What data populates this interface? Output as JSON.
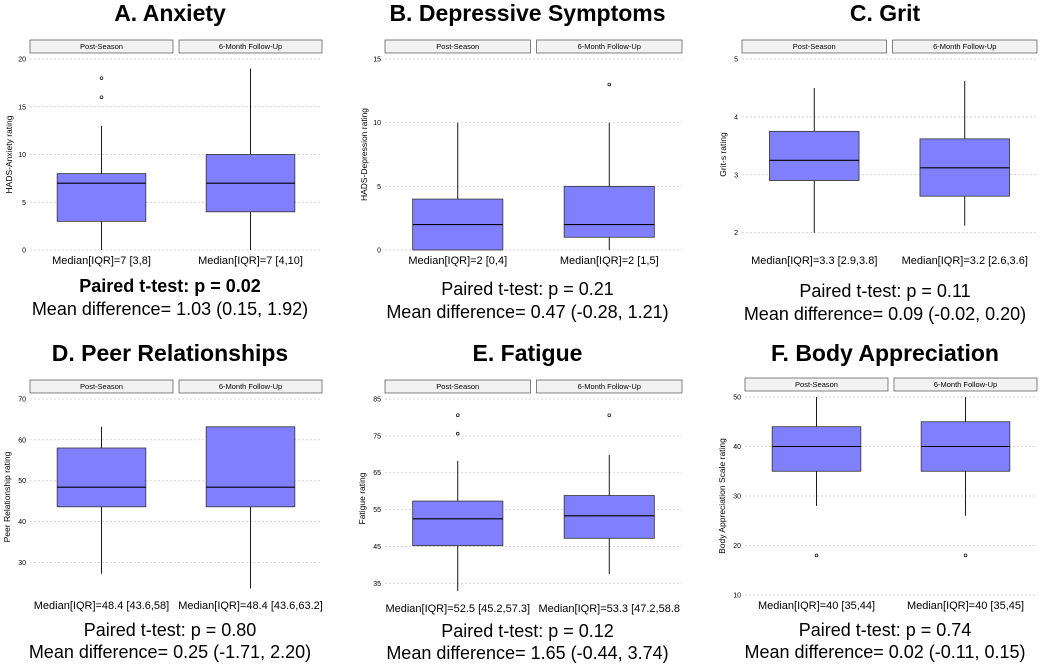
{
  "chart_data": [
    {
      "type": "boxplot",
      "title": "A. Anxiety",
      "ylabel": "HADS-Anxiety rating",
      "ylim": [
        0,
        20
      ],
      "yticks": [
        0,
        5,
        10,
        15,
        20
      ],
      "groups": [
        {
          "name": "Post-Season",
          "min": 0,
          "q1": 3,
          "median": 7,
          "q3": 8,
          "max": 13,
          "outliers": [
            16,
            18
          ],
          "summary": "Median[IQR]=7 [3,8]"
        },
        {
          "name": "6-Month Follow-Up",
          "min": 0,
          "q1": 4,
          "median": 7,
          "q3": 10,
          "max": 19,
          "outliers": [],
          "summary": "Median[IQR]=7 [4,10]"
        }
      ],
      "test": "Paired t-test: p = 0.02",
      "test_bold": true,
      "mean_diff": "Mean difference= 1.03 (0.15, 1.92)"
    },
    {
      "type": "boxplot",
      "title": "B. Depressive Symptoms",
      "ylabel": "HADS-Depression rating",
      "ylim": [
        0,
        15
      ],
      "yticks": [
        0,
        5,
        10,
        15
      ],
      "groups": [
        {
          "name": "Post-Season",
          "min": 0,
          "q1": 0,
          "median": 2,
          "q3": 4,
          "max": 10,
          "outliers": [],
          "summary": "Median[IQR]=2 [0,4]"
        },
        {
          "name": "6-Month Follow-Up",
          "min": 0,
          "q1": 1,
          "median": 2,
          "q3": 5,
          "max": 10,
          "outliers": [
            13
          ],
          "summary": "Median[IQR]=2 [1,5]"
        }
      ],
      "test": "Paired t-test: p = 0.21",
      "test_bold": false,
      "mean_diff": "Mean difference= 0.47 (-0.28, 1.21)"
    },
    {
      "type": "boxplot",
      "title": "C. Grit",
      "ylabel": "Grit-s rating",
      "ylim": [
        1.7,
        5
      ],
      "yticks": [
        2,
        3,
        4,
        5
      ],
      "groups": [
        {
          "name": "Post-Season",
          "min": 2.0,
          "q1": 2.9,
          "median": 3.25,
          "q3": 3.75,
          "max": 4.5,
          "outliers": [],
          "summary": "Median[IQR]=3.3 [2.9,3.8]"
        },
        {
          "name": "6-Month Follow-Up",
          "min": 2.12,
          "q1": 2.63,
          "median": 3.12,
          "q3": 3.62,
          "max": 4.62,
          "outliers": [],
          "summary": "Median[IQR]=3.2 [2.6,3.6]"
        }
      ],
      "test": "Paired t-test: p = 0.11",
      "test_bold": false,
      "mean_diff": "Mean difference= 0.09 (-0.02, 0.20)"
    },
    {
      "type": "boxplot",
      "title": "D. Peer Relationships",
      "ylabel": "Peer Relationship rating",
      "ylim": [
        22,
        70
      ],
      "yticks": [
        30,
        40,
        50,
        60,
        70
      ],
      "groups": [
        {
          "name": "Post-Season",
          "min": 27.2,
          "q1": 43.6,
          "median": 48.4,
          "q3": 58,
          "max": 63.2,
          "outliers": [],
          "summary": "Median[IQR]=48.4 [43.6,58]"
        },
        {
          "name": "6-Month Follow-Up",
          "min": 23.6,
          "q1": 43.6,
          "median": 48.4,
          "q3": 63.2,
          "max": 63.2,
          "outliers": [],
          "summary": "Median[IQR]=48.4 [43.6,63.2]"
        }
      ],
      "test": "Paired t-test: p = 0.80",
      "test_bold": false,
      "mean_diff": "Mean difference= 0.25 (-1.71, 2.20)"
    },
    {
      "type": "boxplot",
      "title": "E. Fatigue",
      "ylabel": "Fatigue rating",
      "ylim": [
        31,
        85
      ],
      "yticks": [
        35,
        45,
        55,
        65,
        75,
        85
      ],
      "groups": [
        {
          "name": "Post-Season",
          "min": 32.9,
          "q1": 45.2,
          "median": 52.5,
          "q3": 57.3,
          "max": 68.2,
          "outliers": [
            75.6,
            80.6
          ],
          "summary": "Median[IQR]=52.5 [45.2,57.3]"
        },
        {
          "name": "6-Month Follow-Up",
          "min": 37.5,
          "q1": 47.2,
          "median": 53.3,
          "q3": 58.8,
          "max": 69.8,
          "outliers": [
            80.6
          ],
          "summary": "Median[IQR]=53.3 [47.2,58.8"
        }
      ],
      "test": "Paired t-test: p = 0.12",
      "test_bold": false,
      "mean_diff": "Mean difference= 1.65 (-0.44, 3.74)"
    },
    {
      "type": "boxplot",
      "title": "F. Body Appreciation",
      "ylabel": "Body Appreciation Scale rating",
      "ylim": [
        10,
        50
      ],
      "yticks": [
        10,
        20,
        30,
        40,
        50
      ],
      "groups": [
        {
          "name": "Post-Season",
          "min": 28,
          "q1": 35,
          "median": 40,
          "q3": 44,
          "max": 50,
          "outliers": [
            18
          ],
          "summary": "Median[IQR]=40 [35,44]"
        },
        {
          "name": "6-Month Follow-Up",
          "min": 26,
          "q1": 35,
          "median": 40,
          "q3": 45,
          "max": 50,
          "outliers": [
            18
          ],
          "summary": "Median[IQR]=40 [35,45]"
        }
      ],
      "test": "Paired t-test: p = 0.74",
      "test_bold": false,
      "mean_diff": "Mean difference= 0.02 (-0.11, 0.15)"
    }
  ],
  "colors": {
    "box_fill": "#8080ff",
    "strip_fill": "#f2f2f2",
    "grid": "#c8c8c8",
    "line": "#000000"
  }
}
